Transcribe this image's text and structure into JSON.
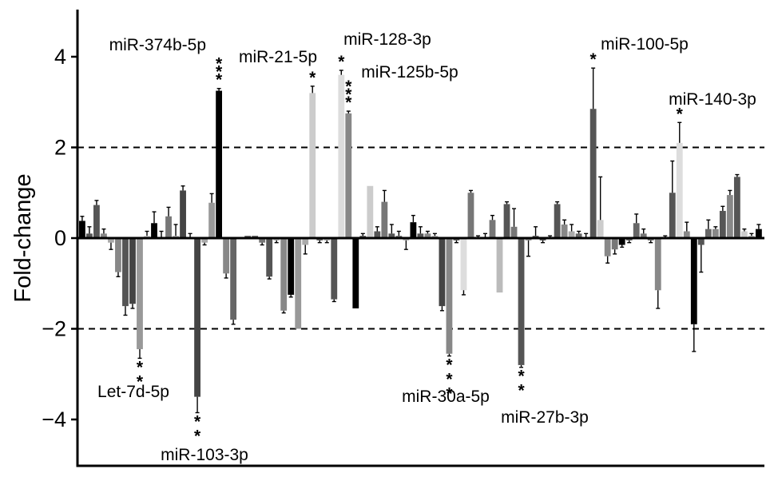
{
  "chart_data": {
    "type": "bar",
    "ylabel": "Fold-change",
    "ylim": [
      -5,
      5
    ],
    "yticks": [
      -4,
      -2,
      0,
      2,
      4
    ],
    "reference_lines": [
      2,
      -2
    ],
    "grid": false,
    "bars": [
      {
        "v": 0.38,
        "e": 0.1,
        "c": "#000000"
      },
      {
        "v": 0.1,
        "e": 0.15,
        "c": "#555555"
      },
      {
        "v": 0.73,
        "e": 0.1,
        "c": "#555555"
      },
      {
        "v": 0.1,
        "e": 0.1,
        "c": "#888888"
      },
      {
        "v": -0.1,
        "e": 0.15,
        "c": "#aaaaaa"
      },
      {
        "v": -0.75,
        "e": 0.1,
        "c": "#888888"
      },
      {
        "v": -1.5,
        "e": 0.2,
        "c": "#555555"
      },
      {
        "v": -1.45,
        "e": 0.1,
        "c": "#444444"
      },
      {
        "v": -2.45,
        "e": 0.2,
        "c": "#999999"
      },
      {
        "v": 0.05,
        "e": 0.1,
        "c": "#cccccc"
      },
      {
        "v": 0.33,
        "e": 0.25,
        "c": "#000000"
      },
      {
        "v": 0.0,
        "e": 0.15,
        "c": "#555555"
      },
      {
        "v": 0.48,
        "e": 0.2,
        "c": "#777777"
      },
      {
        "v": 0.05,
        "e": 0.25,
        "c": "#aaaaaa"
      },
      {
        "v": 1.05,
        "e": 0.1,
        "c": "#444444"
      },
      {
        "v": 0.0,
        "e": 0.1,
        "c": "#777777"
      },
      {
        "v": -3.5,
        "e": 0.35,
        "c": "#444444"
      },
      {
        "v": -0.1,
        "e": 0.05,
        "c": "#aaaaaa"
      },
      {
        "v": 0.78,
        "e": 0.2,
        "c": "#999999"
      },
      {
        "v": 3.25,
        "e": 0.05,
        "c": "#000000"
      },
      {
        "v": -0.78,
        "e": 0.1,
        "c": "#888888"
      },
      {
        "v": -1.8,
        "e": 0.1,
        "c": "#666666"
      },
      {
        "v": 0.0,
        "e": 0.0,
        "c": "#555555"
      },
      {
        "v": 0.05,
        "e": 0.0,
        "c": "#555555"
      },
      {
        "v": 0.05,
        "e": 0.0,
        "c": "#555555"
      },
      {
        "v": -0.1,
        "e": 0.05,
        "c": "#777777"
      },
      {
        "v": -0.85,
        "e": 0.05,
        "c": "#555555"
      },
      {
        "v": -0.05,
        "e": 0.05,
        "c": "#aaaaaa"
      },
      {
        "v": -1.6,
        "e": 0.05,
        "c": "#888888"
      },
      {
        "v": -1.25,
        "e": 0.05,
        "c": "#000000"
      },
      {
        "v": -2.0,
        "e": 0.0,
        "c": "#999999"
      },
      {
        "v": -0.15,
        "e": 0.2,
        "c": "#aaaaaa"
      },
      {
        "v": 3.2,
        "e": 0.15,
        "c": "#cccccc"
      },
      {
        "v": -0.05,
        "e": 0.05,
        "c": "#555555"
      },
      {
        "v": -0.05,
        "e": 0.05,
        "c": "#aaaaaa"
      },
      {
        "v": -1.35,
        "e": 0.05,
        "c": "#555555"
      },
      {
        "v": 3.6,
        "e": 0.1,
        "c": "#dddddd"
      },
      {
        "v": 2.75,
        "e": 0.05,
        "c": "#888888"
      },
      {
        "v": -1.55,
        "e": 0.0,
        "c": "#000000"
      },
      {
        "v": 0.05,
        "e": 0.05,
        "c": "#555555"
      },
      {
        "v": 1.15,
        "e": 0.0,
        "c": "#cccccc"
      },
      {
        "v": 0.15,
        "e": 0.1,
        "c": "#555555"
      },
      {
        "v": 0.8,
        "e": 0.25,
        "c": "#777777"
      },
      {
        "v": 0.1,
        "e": 0.2,
        "c": "#555555"
      },
      {
        "v": 0.05,
        "e": 0.1,
        "c": "#666666"
      },
      {
        "v": -0.05,
        "e": 0.2,
        "c": "#aaaaaa"
      },
      {
        "v": 0.35,
        "e": 0.15,
        "c": "#000000"
      },
      {
        "v": 0.1,
        "e": 0.15,
        "c": "#555555"
      },
      {
        "v": 0.1,
        "e": 0.05,
        "c": "#888888"
      },
      {
        "v": 0.05,
        "e": 0.05,
        "c": "#aaaaaa"
      },
      {
        "v": -1.5,
        "e": 0.1,
        "c": "#444444"
      },
      {
        "v": -2.55,
        "e": 0.05,
        "c": "#888888"
      },
      {
        "v": -0.05,
        "e": 0.05,
        "c": "#555555"
      },
      {
        "v": -1.15,
        "e": 0.1,
        "c": "#dddddd"
      },
      {
        "v": 1.0,
        "e": 0.05,
        "c": "#777777"
      },
      {
        "v": 0.0,
        "e": 0.05,
        "c": "#555555"
      },
      {
        "v": 0.0,
        "e": 0.1,
        "c": "#555555"
      },
      {
        "v": 0.4,
        "e": 0.1,
        "c": "#777777"
      },
      {
        "v": -1.2,
        "e": 0.0,
        "c": "#bbbbbb"
      },
      {
        "v": 0.75,
        "e": 0.05,
        "c": "#555555"
      },
      {
        "v": 0.25,
        "e": 0.4,
        "c": "#777777"
      },
      {
        "v": -2.8,
        "e": 0.05,
        "c": "#555555"
      },
      {
        "v": -0.05,
        "e": 0.35,
        "c": "#888888"
      },
      {
        "v": 0.05,
        "e": 0.2,
        "c": "#555555"
      },
      {
        "v": -0.05,
        "e": 0.05,
        "c": "#444444"
      },
      {
        "v": 0.0,
        "e": 0.05,
        "c": "#555555"
      },
      {
        "v": 0.75,
        "e": 0.05,
        "c": "#555555"
      },
      {
        "v": 0.3,
        "e": 0.1,
        "c": "#888888"
      },
      {
        "v": 0.15,
        "e": 0.15,
        "c": "#aaaaaa"
      },
      {
        "v": 0.1,
        "e": 0.05,
        "c": "#666666"
      },
      {
        "v": 0.0,
        "e": 0.1,
        "c": "#888888"
      },
      {
        "v": 2.85,
        "e": 0.9,
        "c": "#555555"
      },
      {
        "v": 0.4,
        "e": 0.95,
        "c": "#cccccc"
      },
      {
        "v": -0.4,
        "e": 0.15,
        "c": "#888888"
      },
      {
        "v": -0.25,
        "e": 0.1,
        "c": "#777777"
      },
      {
        "v": -0.15,
        "e": 0.05,
        "c": "#000000"
      },
      {
        "v": -0.05,
        "e": 0.05,
        "c": "#555555"
      },
      {
        "v": 0.33,
        "e": 0.2,
        "c": "#666666"
      },
      {
        "v": 0.1,
        "e": 0.1,
        "c": "#777777"
      },
      {
        "v": -0.05,
        "e": 0.05,
        "c": "#666666"
      },
      {
        "v": -1.15,
        "e": 0.4,
        "c": "#888888"
      },
      {
        "v": 0.0,
        "e": 0.05,
        "c": "#555555"
      },
      {
        "v": 1.0,
        "e": 0.7,
        "c": "#555555"
      },
      {
        "v": 2.1,
        "e": 0.45,
        "c": "#dddddd"
      },
      {
        "v": 0.15,
        "e": 0.2,
        "c": "#888888"
      },
      {
        "v": -1.9,
        "e": 0.6,
        "c": "#000000"
      },
      {
        "v": -0.15,
        "e": 0.6,
        "c": "#555555"
      },
      {
        "v": 0.2,
        "e": 0.2,
        "c": "#666666"
      },
      {
        "v": 0.2,
        "e": 0.05,
        "c": "#888888"
      },
      {
        "v": 0.6,
        "e": 0.1,
        "c": "#555555"
      },
      {
        "v": 0.95,
        "e": 0.1,
        "c": "#888888"
      },
      {
        "v": 1.35,
        "e": 0.05,
        "c": "#555555"
      },
      {
        "v": 0.15,
        "e": 0.05,
        "c": "#cccccc"
      },
      {
        "v": 0.05,
        "e": 0.05,
        "c": "#aaaaaa"
      },
      {
        "v": 0.2,
        "e": 0.1,
        "c": "#000000"
      }
    ],
    "annotations": [
      {
        "text": "miR-374b-5p",
        "bar": 19,
        "stars": "***"
      },
      {
        "text": "miR-21-5p",
        "bar": 32,
        "stars": "*"
      },
      {
        "text": "miR-128-3p",
        "bar": 36,
        "stars": "*"
      },
      {
        "text": "miR-125b-5p",
        "bar": 37,
        "stars": "***"
      },
      {
        "text": "miR-100-5p",
        "bar": 71,
        "stars": "*"
      },
      {
        "text": "miR-140-3p",
        "bar": 83,
        "stars": "*"
      },
      {
        "text": "Let-7d-5p",
        "bar": 8,
        "stars": "**"
      },
      {
        "text": "miR-103-3p",
        "bar": 16,
        "stars": "**"
      },
      {
        "text": "miR-30a-5p",
        "bar": 51,
        "stars": "***"
      },
      {
        "text": "miR-27b-3p",
        "bar": 61,
        "stars": "**"
      }
    ]
  }
}
